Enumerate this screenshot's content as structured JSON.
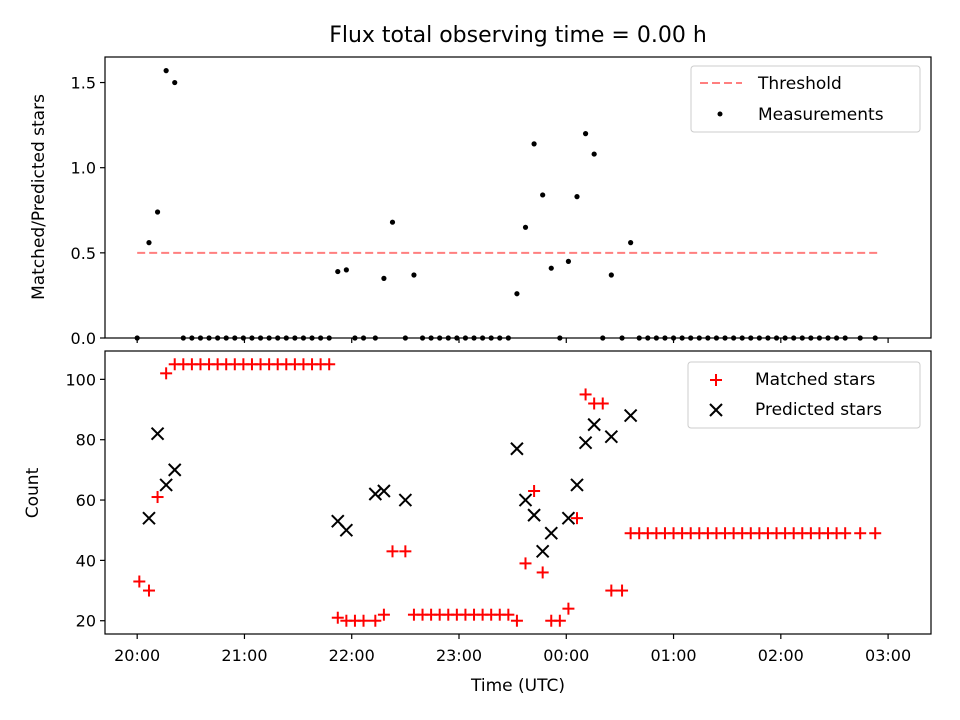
{
  "chart_data": [
    {
      "type": "scatter",
      "title": "Flux total observing time = 0.00 h",
      "xlabel": "",
      "ylabel": "Matched/Predicted stars",
      "xlim": [
        19.7,
        27.4
      ],
      "ylim": [
        0.0,
        1.65
      ],
      "yticks": [
        {
          "value": 0.0,
          "label": "0.0"
        },
        {
          "value": 0.5,
          "label": "0.5"
        },
        {
          "value": 1.0,
          "label": "1.0"
        },
        {
          "value": 1.5,
          "label": "1.5"
        }
      ],
      "legend": [
        {
          "label": "Threshold",
          "style": "dashed-line",
          "color": "#ff7f7f"
        },
        {
          "label": "Measurements",
          "style": "dot",
          "color": "#000000"
        }
      ],
      "legend_position": "top-right",
      "threshold": {
        "name": "Threshold",
        "value": 0.5,
        "x": [
          20.0,
          26.9
        ],
        "color": "#ff7f7f"
      },
      "series": [
        {
          "name": "Measurements",
          "color": "#000000",
          "x": [
            20.0,
            20.11,
            20.19,
            20.27,
            20.35,
            20.43,
            20.51,
            20.59,
            20.67,
            20.75,
            20.83,
            20.91,
            20.99,
            21.07,
            21.15,
            21.23,
            21.31,
            21.39,
            21.47,
            21.55,
            21.63,
            21.71,
            21.79,
            21.87,
            21.95,
            22.03,
            22.11,
            22.22,
            22.3,
            22.38,
            22.5,
            22.58,
            22.66,
            22.74,
            22.82,
            22.9,
            22.98,
            23.06,
            23.14,
            23.22,
            23.3,
            23.38,
            23.46,
            23.54,
            23.62,
            23.7,
            23.78,
            23.86,
            23.94,
            24.02,
            24.1,
            24.18,
            24.26,
            24.34,
            24.42,
            24.52,
            24.6,
            24.68,
            24.76,
            24.84,
            24.92,
            25.0,
            25.08,
            25.16,
            25.24,
            25.32,
            25.4,
            25.48,
            25.56,
            25.64,
            25.72,
            25.8,
            25.88,
            25.96,
            26.04,
            26.12,
            26.2,
            26.28,
            26.36,
            26.44,
            26.52,
            26.6,
            26.74,
            26.88
          ],
          "values": [
            0.0,
            0.56,
            0.74,
            1.57,
            1.5,
            0.0,
            0.0,
            0.0,
            0.0,
            0.0,
            0.0,
            0.0,
            0.0,
            0.0,
            0.0,
            0.0,
            0.0,
            0.0,
            0.0,
            0.0,
            0.0,
            0.0,
            0.0,
            0.39,
            0.4,
            0.0,
            0.0,
            0.0,
            0.35,
            0.68,
            0.0,
            0.37,
            0.0,
            0.0,
            0.0,
            0.0,
            0.0,
            0.0,
            0.0,
            0.0,
            0.0,
            0.0,
            0.0,
            0.26,
            0.65,
            1.14,
            0.84,
            0.41,
            0.0,
            0.45,
            0.83,
            1.2,
            1.08,
            0.0,
            0.37,
            0.0,
            0.56,
            0.0,
            0.0,
            0.0,
            0.0,
            0.0,
            0.0,
            0.0,
            0.0,
            0.0,
            0.0,
            0.0,
            0.0,
            0.0,
            0.0,
            0.0,
            0.0,
            0.0,
            0.0,
            0.0,
            0.0,
            0.0,
            0.0,
            0.0,
            0.0,
            0.0,
            0.0,
            0.0
          ]
        }
      ]
    },
    {
      "type": "scatter",
      "title": "",
      "xlabel": "Time (UTC)",
      "ylabel": "Count",
      "xlim": [
        19.7,
        27.4
      ],
      "ylim": [
        15.6,
        109.4
      ],
      "yticks": [
        {
          "value": 20,
          "label": "20"
        },
        {
          "value": 40,
          "label": "40"
        },
        {
          "value": 60,
          "label": "60"
        },
        {
          "value": 80,
          "label": "80"
        },
        {
          "value": 100,
          "label": "100"
        }
      ],
      "xticks": [
        {
          "value": 20,
          "label": "20:00"
        },
        {
          "value": 21,
          "label": "21:00"
        },
        {
          "value": 22,
          "label": "22:00"
        },
        {
          "value": 23,
          "label": "23:00"
        },
        {
          "value": 24,
          "label": "00:00"
        },
        {
          "value": 25,
          "label": "01:00"
        },
        {
          "value": 26,
          "label": "02:00"
        },
        {
          "value": 27,
          "label": "03:00"
        }
      ],
      "legend": [
        {
          "label": "Matched stars",
          "style": "plus",
          "color": "#ff0000"
        },
        {
          "label": "Predicted stars",
          "style": "x",
          "color": "#000000"
        }
      ],
      "legend_position": "top-right",
      "series": [
        {
          "name": "Matched stars",
          "marker": "plus",
          "color": "#ff0000",
          "x": [
            20.02,
            20.11,
            20.19,
            20.27,
            20.35,
            20.43,
            20.51,
            20.59,
            20.67,
            20.75,
            20.83,
            20.91,
            20.99,
            21.07,
            21.15,
            21.23,
            21.31,
            21.39,
            21.47,
            21.55,
            21.63,
            21.71,
            21.79,
            21.87,
            21.95,
            22.03,
            22.11,
            22.22,
            22.3,
            22.38,
            22.5,
            22.58,
            22.66,
            22.74,
            22.82,
            22.9,
            22.98,
            23.06,
            23.14,
            23.22,
            23.3,
            23.38,
            23.46,
            23.54,
            23.62,
            23.7,
            23.78,
            23.86,
            23.94,
            24.02,
            24.1,
            24.18,
            24.26,
            24.34,
            24.42,
            24.52,
            24.6,
            24.68,
            24.76,
            24.84,
            24.92,
            25.0,
            25.08,
            25.16,
            25.24,
            25.32,
            25.4,
            25.48,
            25.56,
            25.64,
            25.72,
            25.8,
            25.88,
            25.96,
            26.04,
            26.12,
            26.2,
            26.28,
            26.36,
            26.44,
            26.52,
            26.6,
            26.74,
            26.88
          ],
          "values": [
            33,
            30,
            61,
            102,
            105,
            105,
            105,
            105,
            105,
            105,
            105,
            105,
            105,
            105,
            105,
            105,
            105,
            105,
            105,
            105,
            105,
            105,
            105,
            21,
            20,
            20,
            20,
            20,
            22,
            43,
            43,
            22,
            22,
            22,
            22,
            22,
            22,
            22,
            22,
            22,
            22,
            22,
            22,
            20,
            39,
            63,
            36,
            20,
            20,
            24,
            54,
            95,
            92,
            92,
            30,
            30,
            49,
            49,
            49,
            49,
            49,
            49,
            49,
            49,
            49,
            49,
            49,
            49,
            49,
            49,
            49,
            49,
            49,
            49,
            49,
            49,
            49,
            49,
            49,
            49,
            49,
            49,
            49,
            49
          ]
        },
        {
          "name": "Predicted stars",
          "marker": "x",
          "color": "#000000",
          "x": [
            20.11,
            20.19,
            20.27,
            20.35,
            21.87,
            21.95,
            22.22,
            22.3,
            22.5,
            23.54,
            23.62,
            23.7,
            23.78,
            23.86,
            24.02,
            24.1,
            24.18,
            24.26,
            24.42,
            24.6
          ],
          "values": [
            54,
            82,
            65,
            70,
            53,
            50,
            62,
            63,
            60,
            77,
            60,
            55,
            43,
            49,
            54,
            65,
            79,
            85,
            81,
            88
          ]
        }
      ]
    }
  ]
}
